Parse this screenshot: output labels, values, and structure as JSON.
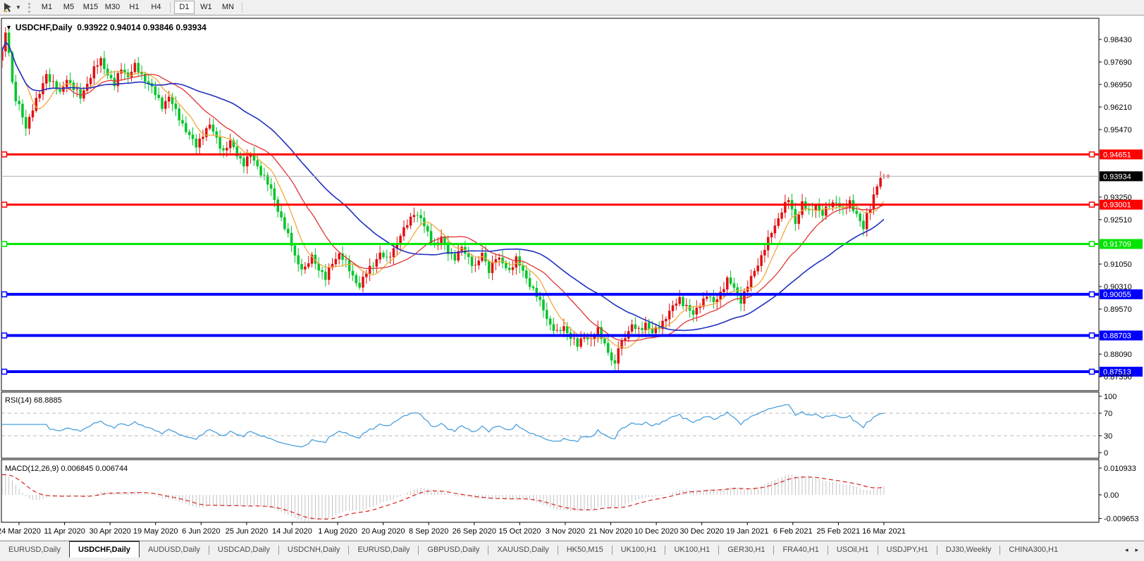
{
  "toolbar": {
    "tool_icon": "crosshair-pointer-tool",
    "timeframes": [
      "M1",
      "M5",
      "M15",
      "M30",
      "H1",
      "H4",
      "D1",
      "W1",
      "MN"
    ],
    "active_timeframe": "D1"
  },
  "chart": {
    "title_symbol": "USDCHF,Daily",
    "title_ohlc": "0.93922 0.94014 0.93846 0.93934",
    "price_axis_ticks": [
      "0.98430",
      "0.97690",
      "0.96950",
      "0.96210",
      "0.95470",
      "0.93250",
      "0.92510",
      "0.91050",
      "0.90310",
      "0.89570",
      "0.88090",
      "0.87350"
    ],
    "price_axis_tick_values": [
      0.9843,
      0.9769,
      0.9695,
      0.9621,
      0.9547,
      0.9325,
      0.9251,
      0.9105,
      0.9031,
      0.8957,
      0.8809,
      0.8735
    ],
    "current_price_label": "0.93934",
    "horizontal_lines": [
      {
        "price": 0.94651,
        "label": "0.94651",
        "color": "#ff0000",
        "width": 3
      },
      {
        "price": 0.93001,
        "label": "0.93001",
        "color": "#ff0000",
        "width": 3
      },
      {
        "price": 0.91709,
        "label": "0.91709",
        "color": "#00e400",
        "width": 3
      },
      {
        "price": 0.90055,
        "label": "0.90055",
        "color": "#0000ff",
        "width": 4
      },
      {
        "price": 0.88703,
        "label": "0.88703",
        "color": "#0000ff",
        "width": 4
      },
      {
        "price": 0.87513,
        "label": "0.87513",
        "color": "#0000ff",
        "width": 4
      }
    ],
    "date_axis_labels": [
      "24 Mar 2020",
      "11 Apr 2020",
      "30 Apr 2020",
      "19 May 2020",
      "6 Jun 2020",
      "25 Jun 2020",
      "14 Jul 2020",
      "1 Aug 2020",
      "20 Aug 2020",
      "8 Sep 2020",
      "26 Sep 2020",
      "15 Oct 2020",
      "3 Nov 2020",
      "21 Nov 2020",
      "10 Dec 2020",
      "30 Dec 2020",
      "19 Jan 2021",
      "6 Feb 2021",
      "25 Feb 2021",
      "16 Mar 2021"
    ]
  },
  "chart_data": {
    "type": "candlestick",
    "symbol": "USDCHF",
    "timeframe": "Daily",
    "bars_count": 260,
    "last_bar": {
      "open": 0.93922,
      "high": 0.94014,
      "low": 0.93846,
      "close": 0.93934
    },
    "visible_price_range": [
      0.872,
      0.9905
    ],
    "up_color": "#e01010",
    "down_color": "#00c428",
    "close_keypoints": [
      [
        0,
        0.98
      ],
      [
        1,
        0.9862
      ],
      [
        2,
        0.981
      ],
      [
        3,
        0.97
      ],
      [
        4,
        0.9645
      ],
      [
        5,
        0.9622
      ],
      [
        6,
        0.9585
      ],
      [
        7,
        0.9556
      ],
      [
        9,
        0.9618
      ],
      [
        11,
        0.9663
      ],
      [
        13,
        0.973
      ],
      [
        15,
        0.9698
      ],
      [
        17,
        0.9663
      ],
      [
        19,
        0.9716
      ],
      [
        21,
        0.9682
      ],
      [
        23,
        0.9652
      ],
      [
        25,
        0.97
      ],
      [
        27,
        0.9744
      ],
      [
        29,
        0.9775
      ],
      [
        31,
        0.9731
      ],
      [
        33,
        0.9692
      ],
      [
        35,
        0.975
      ],
      [
        37,
        0.9722
      ],
      [
        39,
        0.9754
      ],
      [
        41,
        0.9726
      ],
      [
        43,
        0.97
      ],
      [
        45,
        0.9662
      ],
      [
        47,
        0.9626
      ],
      [
        49,
        0.9654
      ],
      [
        51,
        0.9606
      ],
      [
        53,
        0.9566
      ],
      [
        55,
        0.9526
      ],
      [
        57,
        0.9492
      ],
      [
        59,
        0.9534
      ],
      [
        61,
        0.956
      ],
      [
        63,
        0.9516
      ],
      [
        65,
        0.9476
      ],
      [
        67,
        0.9504
      ],
      [
        69,
        0.9466
      ],
      [
        71,
        0.9436
      ],
      [
        73,
        0.9464
      ],
      [
        75,
        0.9426
      ],
      [
        77,
        0.939
      ],
      [
        79,
        0.9346
      ],
      [
        81,
        0.9286
      ],
      [
        83,
        0.9226
      ],
      [
        85,
        0.9166
      ],
      [
        87,
        0.9106
      ],
      [
        89,
        0.9086
      ],
      [
        91,
        0.913
      ],
      [
        93,
        0.9092
      ],
      [
        95,
        0.9056
      ],
      [
        97,
        0.911
      ],
      [
        99,
        0.914
      ],
      [
        101,
        0.9106
      ],
      [
        103,
        0.9066
      ],
      [
        105,
        0.9032
      ],
      [
        107,
        0.9076
      ],
      [
        109,
        0.9106
      ],
      [
        111,
        0.914
      ],
      [
        113,
        0.9116
      ],
      [
        115,
        0.9156
      ],
      [
        117,
        0.9196
      ],
      [
        119,
        0.9236
      ],
      [
        121,
        0.9276
      ],
      [
        123,
        0.9252
      ],
      [
        125,
        0.9206
      ],
      [
        127,
        0.9166
      ],
      [
        129,
        0.919
      ],
      [
        131,
        0.9146
      ],
      [
        133,
        0.9126
      ],
      [
        135,
        0.9156
      ],
      [
        137,
        0.9126
      ],
      [
        139,
        0.9096
      ],
      [
        141,
        0.9136
      ],
      [
        143,
        0.9086
      ],
      [
        145,
        0.9126
      ],
      [
        147,
        0.9106
      ],
      [
        149,
        0.9086
      ],
      [
        151,
        0.912
      ],
      [
        153,
        0.908
      ],
      [
        155,
        0.904
      ],
      [
        157,
        0.9
      ],
      [
        159,
        0.8956
      ],
      [
        161,
        0.8906
      ],
      [
        163,
        0.8876
      ],
      [
        165,
        0.89
      ],
      [
        167,
        0.8866
      ],
      [
        169,
        0.8836
      ],
      [
        171,
        0.887
      ],
      [
        173,
        0.8856
      ],
      [
        175,
        0.8886
      ],
      [
        177,
        0.8846
      ],
      [
        179,
        0.879
      ],
      [
        180,
        0.8768
      ],
      [
        181,
        0.8832
      ],
      [
        183,
        0.887
      ],
      [
        185,
        0.89
      ],
      [
        187,
        0.8886
      ],
      [
        189,
        0.8912
      ],
      [
        191,
        0.8876
      ],
      [
        193,
        0.89
      ],
      [
        195,
        0.8932
      ],
      [
        197,
        0.8962
      ],
      [
        199,
        0.8992
      ],
      [
        201,
        0.8966
      ],
      [
        203,
        0.8936
      ],
      [
        205,
        0.8976
      ],
      [
        207,
        0.9002
      ],
      [
        209,
        0.8976
      ],
      [
        211,
        0.9012
      ],
      [
        213,
        0.9052
      ],
      [
        215,
        0.9026
      ],
      [
        217,
        0.8986
      ],
      [
        219,
        0.9032
      ],
      [
        221,
        0.9082
      ],
      [
        223,
        0.9132
      ],
      [
        225,
        0.9182
      ],
      [
        227,
        0.9232
      ],
      [
        229,
        0.9282
      ],
      [
        231,
        0.9316
      ],
      [
        233,
        0.9242
      ],
      [
        235,
        0.9306
      ],
      [
        237,
        0.9272
      ],
      [
        239,
        0.93
      ],
      [
        241,
        0.9268
      ],
      [
        243,
        0.9296
      ],
      [
        245,
        0.9312
      ],
      [
        247,
        0.9282
      ],
      [
        249,
        0.9306
      ],
      [
        251,
        0.9272
      ],
      [
        253,
        0.922
      ],
      [
        254,
        0.9262
      ],
      [
        255,
        0.9292
      ],
      [
        256,
        0.9332
      ],
      [
        257,
        0.9366
      ],
      [
        258,
        0.9386
      ],
      [
        259,
        0.93934
      ]
    ],
    "moving_averages": [
      {
        "name": "fast",
        "period": 8,
        "color": "#efa93c"
      },
      {
        "name": "medium",
        "period": 20,
        "color": "#e03333"
      },
      {
        "name": "slow",
        "period": 42,
        "color": "#2030c0"
      }
    ]
  },
  "rsi": {
    "label": "RSI(14) 68.8885",
    "period": 14,
    "value": 68.8885,
    "axis_ticks": [
      "100",
      "70",
      "30",
      "0"
    ],
    "axis_tick_values": [
      100,
      70,
      30,
      0
    ],
    "levels": [
      70,
      30
    ],
    "line_color": "#4aa0dc"
  },
  "macd": {
    "label": "MACD(12,26,9) 0.006845 0.006744",
    "macd_value": 0.006845,
    "signal_value": 0.006744,
    "axis_ticks": [
      "0.010933",
      "0.00",
      "-0.009653"
    ],
    "axis_tick_values": [
      0.010933,
      0.0,
      -0.009653
    ],
    "histogram_color": "#c2c2c2",
    "signal_color": "#d62020"
  },
  "tabs": {
    "items": [
      "EURUSD,Daily",
      "USDCHF,Daily",
      "AUDUSD,Daily",
      "USDCAD,Daily",
      "USDCNH,Daily",
      "EURUSD,Daily",
      "GBPUSD,Daily",
      "XAUUSD,Daily",
      "HK50,M15",
      "UK100,H1",
      "UK100,H1",
      "GER30,H1",
      "FRA40,H1",
      "USOil,H1",
      "USDJPY,H1",
      "DJ30,Weekly",
      "CHINA300,H1"
    ],
    "active_index": 1,
    "scroll_left_icon": "◂",
    "scroll_right_icon": "▸"
  }
}
